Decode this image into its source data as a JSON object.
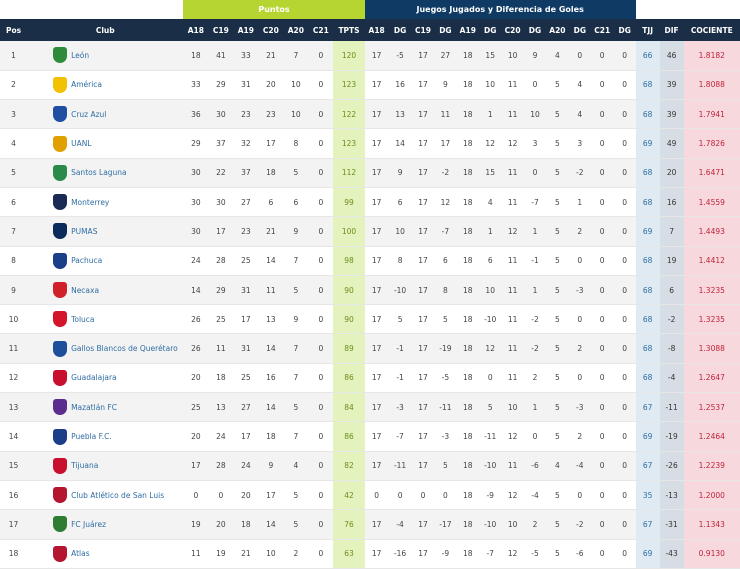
{
  "groups": {
    "puntos": "Puntos",
    "juegos": "Juegos Jugados y Diferencia de Goles"
  },
  "columns": {
    "pos": "Pos",
    "club": "Club",
    "a18": "A18",
    "c19": "C19",
    "a19": "A19",
    "c20": "C20",
    "a20": "A20",
    "c21": "C21",
    "tpts": "TPTS",
    "ja18": "A18",
    "dg1": "DG",
    "jc19": "C19",
    "dg2": "DG",
    "ja19": "A19",
    "dg3": "DG",
    "jc20": "C20",
    "dg4": "DG",
    "ja20": "A20",
    "dg5": "DG",
    "jc21": "C21",
    "dg6": "DG",
    "tjj": "TJJ",
    "dif": "DIF",
    "cociente": "COCIENTE"
  },
  "rows": [
    {
      "pos": "1",
      "club": "León",
      "color": "#2e8b3a",
      "a18": "18",
      "c19": "41",
      "a19": "33",
      "c20": "21",
      "a20": "7",
      "c21": "0",
      "tpts": "120",
      "ja18": "17",
      "dg1": "-5",
      "jc19": "17",
      "dg2": "27",
      "ja19": "18",
      "dg3": "15",
      "jc20": "10",
      "dg4": "9",
      "ja20": "4",
      "dg5": "0",
      "jc21": "0",
      "dg6": "0",
      "tjj": "66",
      "dif": "46",
      "coc": "1.8182"
    },
    {
      "pos": "2",
      "club": "América",
      "color": "#f2c200",
      "a18": "33",
      "c19": "29",
      "a19": "31",
      "c20": "20",
      "a20": "10",
      "c21": "0",
      "tpts": "123",
      "ja18": "17",
      "dg1": "16",
      "jc19": "17",
      "dg2": "9",
      "ja19": "18",
      "dg3": "10",
      "jc20": "11",
      "dg4": "0",
      "ja20": "5",
      "dg5": "4",
      "jc21": "0",
      "dg6": "0",
      "tjj": "68",
      "dif": "39",
      "coc": "1.8088"
    },
    {
      "pos": "3",
      "club": "Cruz Azul",
      "color": "#1f4ea3",
      "a18": "36",
      "c19": "30",
      "a19": "23",
      "c20": "23",
      "a20": "10",
      "c21": "0",
      "tpts": "122",
      "ja18": "17",
      "dg1": "13",
      "jc19": "17",
      "dg2": "11",
      "ja19": "18",
      "dg3": "1",
      "jc20": "11",
      "dg4": "10",
      "ja20": "5",
      "dg5": "4",
      "jc21": "0",
      "dg6": "0",
      "tjj": "68",
      "dif": "39",
      "coc": "1.7941"
    },
    {
      "pos": "4",
      "club": "UANL",
      "color": "#e0a100",
      "a18": "29",
      "c19": "37",
      "a19": "32",
      "c20": "17",
      "a20": "8",
      "c21": "0",
      "tpts": "123",
      "ja18": "17",
      "dg1": "14",
      "jc19": "17",
      "dg2": "17",
      "ja19": "18",
      "dg3": "12",
      "jc20": "12",
      "dg4": "3",
      "ja20": "5",
      "dg5": "3",
      "jc21": "0",
      "dg6": "0",
      "tjj": "69",
      "dif": "49",
      "coc": "1.7826"
    },
    {
      "pos": "5",
      "club": "Santos Laguna",
      "color": "#2a8a4a",
      "a18": "30",
      "c19": "22",
      "a19": "37",
      "c20": "18",
      "a20": "5",
      "c21": "0",
      "tpts": "112",
      "ja18": "17",
      "dg1": "9",
      "jc19": "17",
      "dg2": "-2",
      "ja19": "18",
      "dg3": "15",
      "jc20": "11",
      "dg4": "0",
      "ja20": "5",
      "dg5": "-2",
      "jc21": "0",
      "dg6": "0",
      "tjj": "68",
      "dif": "20",
      "coc": "1.6471"
    },
    {
      "pos": "6",
      "club": "Monterrey",
      "color": "#1b2a55",
      "a18": "30",
      "c19": "30",
      "a19": "27",
      "c20": "6",
      "a20": "6",
      "c21": "0",
      "tpts": "99",
      "ja18": "17",
      "dg1": "6",
      "jc19": "17",
      "dg2": "12",
      "ja19": "18",
      "dg3": "4",
      "jc20": "11",
      "dg4": "-7",
      "ja20": "5",
      "dg5": "1",
      "jc21": "0",
      "dg6": "0",
      "tjj": "68",
      "dif": "16",
      "coc": "1.4559"
    },
    {
      "pos": "7",
      "club": "PUMAS",
      "color": "#0b2b5a",
      "a18": "30",
      "c19": "17",
      "a19": "23",
      "c20": "21",
      "a20": "9",
      "c21": "0",
      "tpts": "100",
      "ja18": "17",
      "dg1": "10",
      "jc19": "17",
      "dg2": "-7",
      "ja19": "18",
      "dg3": "1",
      "jc20": "12",
      "dg4": "1",
      "ja20": "5",
      "dg5": "2",
      "jc21": "0",
      "dg6": "0",
      "tjj": "69",
      "dif": "7",
      "coc": "1.4493"
    },
    {
      "pos": "8",
      "club": "Pachuca",
      "color": "#1c3f8a",
      "a18": "24",
      "c19": "28",
      "a19": "25",
      "c20": "14",
      "a20": "7",
      "c21": "0",
      "tpts": "98",
      "ja18": "17",
      "dg1": "8",
      "jc19": "17",
      "dg2": "6",
      "ja19": "18",
      "dg3": "6",
      "jc20": "11",
      "dg4": "-1",
      "ja20": "5",
      "dg5": "0",
      "jc21": "0",
      "dg6": "0",
      "tjj": "68",
      "dif": "19",
      "coc": "1.4412"
    },
    {
      "pos": "9",
      "club": "Necaxa",
      "color": "#d0202a",
      "a18": "14",
      "c19": "29",
      "a19": "31",
      "c20": "11",
      "a20": "5",
      "c21": "0",
      "tpts": "90",
      "ja18": "17",
      "dg1": "-10",
      "jc19": "17",
      "dg2": "8",
      "ja19": "18",
      "dg3": "10",
      "jc20": "11",
      "dg4": "1",
      "ja20": "5",
      "dg5": "-3",
      "jc21": "0",
      "dg6": "0",
      "tjj": "68",
      "dif": "6",
      "coc": "1.3235"
    },
    {
      "pos": "10",
      "club": "Toluca",
      "color": "#d4152b",
      "a18": "26",
      "c19": "25",
      "a19": "17",
      "c20": "13",
      "a20": "9",
      "c21": "0",
      "tpts": "90",
      "ja18": "17",
      "dg1": "5",
      "jc19": "17",
      "dg2": "5",
      "ja19": "18",
      "dg3": "-10",
      "jc20": "11",
      "dg4": "-2",
      "ja20": "5",
      "dg5": "0",
      "jc21": "0",
      "dg6": "0",
      "tjj": "68",
      "dif": "-2",
      "coc": "1.3235"
    },
    {
      "pos": "11",
      "club": "Gallos Blancos de Querétaro",
      "color": "#1e4f9a",
      "a18": "26",
      "c19": "11",
      "a19": "31",
      "c20": "14",
      "a20": "7",
      "c21": "0",
      "tpts": "89",
      "ja18": "17",
      "dg1": "-1",
      "jc19": "17",
      "dg2": "-19",
      "ja19": "18",
      "dg3": "12",
      "jc20": "11",
      "dg4": "-2",
      "ja20": "5",
      "dg5": "2",
      "jc21": "0",
      "dg6": "0",
      "tjj": "68",
      "dif": "-8",
      "coc": "1.3088"
    },
    {
      "pos": "12",
      "club": "Guadalajara",
      "color": "#c8102e",
      "a18": "20",
      "c19": "18",
      "a19": "25",
      "c20": "16",
      "a20": "7",
      "c21": "0",
      "tpts": "86",
      "ja18": "17",
      "dg1": "-1",
      "jc19": "17",
      "dg2": "-5",
      "ja19": "18",
      "dg3": "0",
      "jc20": "11",
      "dg4": "2",
      "ja20": "5",
      "dg5": "0",
      "jc21": "0",
      "dg6": "0",
      "tjj": "68",
      "dif": "-4",
      "coc": "1.2647"
    },
    {
      "pos": "13",
      "club": "Mazatlán FC",
      "color": "#5b2d8e",
      "a18": "25",
      "c19": "13",
      "a19": "27",
      "c20": "14",
      "a20": "5",
      "c21": "0",
      "tpts": "84",
      "ja18": "17",
      "dg1": "-3",
      "jc19": "17",
      "dg2": "-11",
      "ja19": "18",
      "dg3": "5",
      "jc20": "10",
      "dg4": "1",
      "ja20": "5",
      "dg5": "-3",
      "jc21": "0",
      "dg6": "0",
      "tjj": "67",
      "dif": "-11",
      "coc": "1.2537"
    },
    {
      "pos": "14",
      "club": "Puebla F.C.",
      "color": "#1c3f8a",
      "a18": "20",
      "c19": "24",
      "a19": "17",
      "c20": "18",
      "a20": "7",
      "c21": "0",
      "tpts": "86",
      "ja18": "17",
      "dg1": "-7",
      "jc19": "17",
      "dg2": "-3",
      "ja19": "18",
      "dg3": "-11",
      "jc20": "12",
      "dg4": "0",
      "ja20": "5",
      "dg5": "2",
      "jc21": "0",
      "dg6": "0",
      "tjj": "69",
      "dif": "-19",
      "coc": "1.2464"
    },
    {
      "pos": "15",
      "club": "Tijuana",
      "color": "#c8102e",
      "a18": "17",
      "c19": "28",
      "a19": "24",
      "c20": "9",
      "a20": "4",
      "c21": "0",
      "tpts": "82",
      "ja18": "17",
      "dg1": "-11",
      "jc19": "17",
      "dg2": "5",
      "ja19": "18",
      "dg3": "-10",
      "jc20": "11",
      "dg4": "-6",
      "ja20": "4",
      "dg5": "-4",
      "jc21": "0",
      "dg6": "0",
      "tjj": "67",
      "dif": "-26",
      "coc": "1.2239"
    },
    {
      "pos": "16",
      "club": "Club Atlético de San Luis",
      "color": "#b3162e",
      "a18": "0",
      "c19": "0",
      "a19": "20",
      "c20": "17",
      "a20": "5",
      "c21": "0",
      "tpts": "42",
      "ja18": "0",
      "dg1": "0",
      "jc19": "0",
      "dg2": "0",
      "ja19": "18",
      "dg3": "-9",
      "jc20": "12",
      "dg4": "-4",
      "ja20": "5",
      "dg5": "0",
      "jc21": "0",
      "dg6": "0",
      "tjj": "35",
      "dif": "-13",
      "coc": "1.2000"
    },
    {
      "pos": "17",
      "club": "FC Juárez",
      "color": "#2e7d32",
      "a18": "19",
      "c19": "20",
      "a19": "18",
      "c20": "14",
      "a20": "5",
      "c21": "0",
      "tpts": "76",
      "ja18": "17",
      "dg1": "-4",
      "jc19": "17",
      "dg2": "-17",
      "ja19": "18",
      "dg3": "-10",
      "jc20": "10",
      "dg4": "2",
      "ja20": "5",
      "dg5": "-2",
      "jc21": "0",
      "dg6": "0",
      "tjj": "67",
      "dif": "-31",
      "coc": "1.1343"
    },
    {
      "pos": "18",
      "club": "Atlas",
      "color": "#b3162e",
      "a18": "11",
      "c19": "19",
      "a19": "21",
      "c20": "10",
      "a20": "2",
      "c21": "0",
      "tpts": "63",
      "ja18": "17",
      "dg1": "-16",
      "jc19": "17",
      "dg2": "-9",
      "ja19": "18",
      "dg3": "-7",
      "jc20": "12",
      "dg4": "-5",
      "ja20": "5",
      "dg5": "-6",
      "jc21": "0",
      "dg6": "0",
      "tjj": "69",
      "dif": "-43",
      "coc": "0.9130"
    }
  ]
}
